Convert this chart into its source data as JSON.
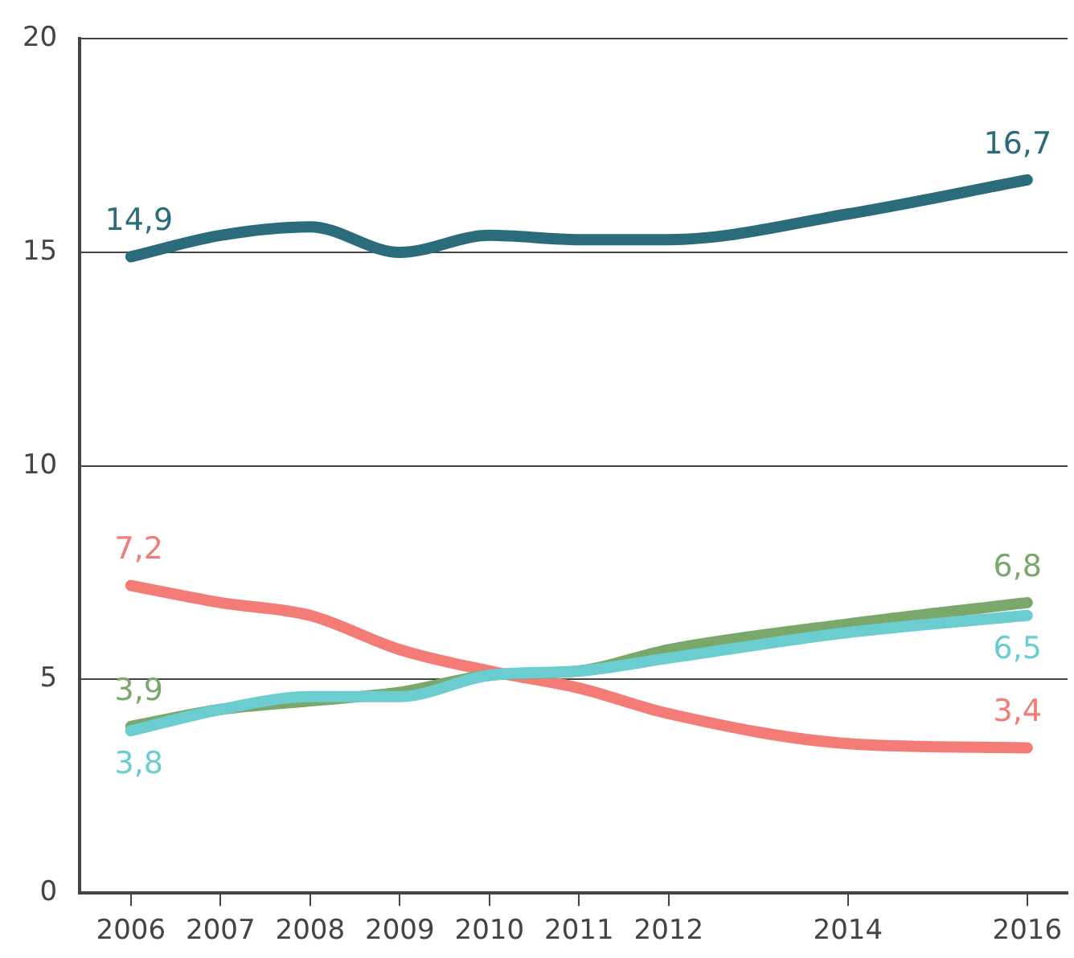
{
  "chart_data": {
    "type": "line",
    "x": [
      2006,
      2007,
      2008,
      2009,
      2010,
      2011,
      2012,
      2014,
      2016
    ],
    "xlim": [
      2005.43,
      2016.45
    ],
    "xticks": [
      2006,
      2007,
      2008,
      2009,
      2010,
      2011,
      2012,
      2014,
      2016
    ],
    "ylim": [
      0,
      20
    ],
    "yticks": [
      0,
      5,
      10,
      15,
      20
    ],
    "grid": "y",
    "legend": false,
    "marker": "none",
    "line_style": "solid",
    "series": [
      {
        "color": "#2a6b7c",
        "values": [
          14.9,
          15.4,
          15.6,
          15.0,
          15.4,
          15.3,
          15.3,
          15.9,
          16.7
        ],
        "value_labels": [
          "14,9",
          null,
          null,
          null,
          null,
          null,
          null,
          null,
          "16,7"
        ]
      },
      {
        "color": "#f47c77",
        "values": [
          7.2,
          6.8,
          6.5,
          5.7,
          5.2,
          4.8,
          4.2,
          3.5,
          3.4
        ],
        "value_labels": [
          "7,2",
          null,
          null,
          null,
          null,
          null,
          null,
          null,
          "3,4"
        ]
      },
      {
        "color": "#7aa86a",
        "values": [
          3.9,
          4.3,
          4.5,
          4.7,
          5.1,
          5.2,
          5.7,
          6.3,
          6.8
        ],
        "value_labels": [
          "3,9",
          null,
          null,
          null,
          null,
          null,
          null,
          null,
          "6,8"
        ]
      },
      {
        "color": "#6ccdd0",
        "values": [
          3.8,
          4.3,
          4.6,
          4.6,
          5.1,
          5.2,
          5.5,
          6.1,
          6.5
        ],
        "value_labels": [
          "3,8",
          null,
          null,
          null,
          null,
          null,
          null,
          null,
          "6,5"
        ]
      }
    ]
  }
}
